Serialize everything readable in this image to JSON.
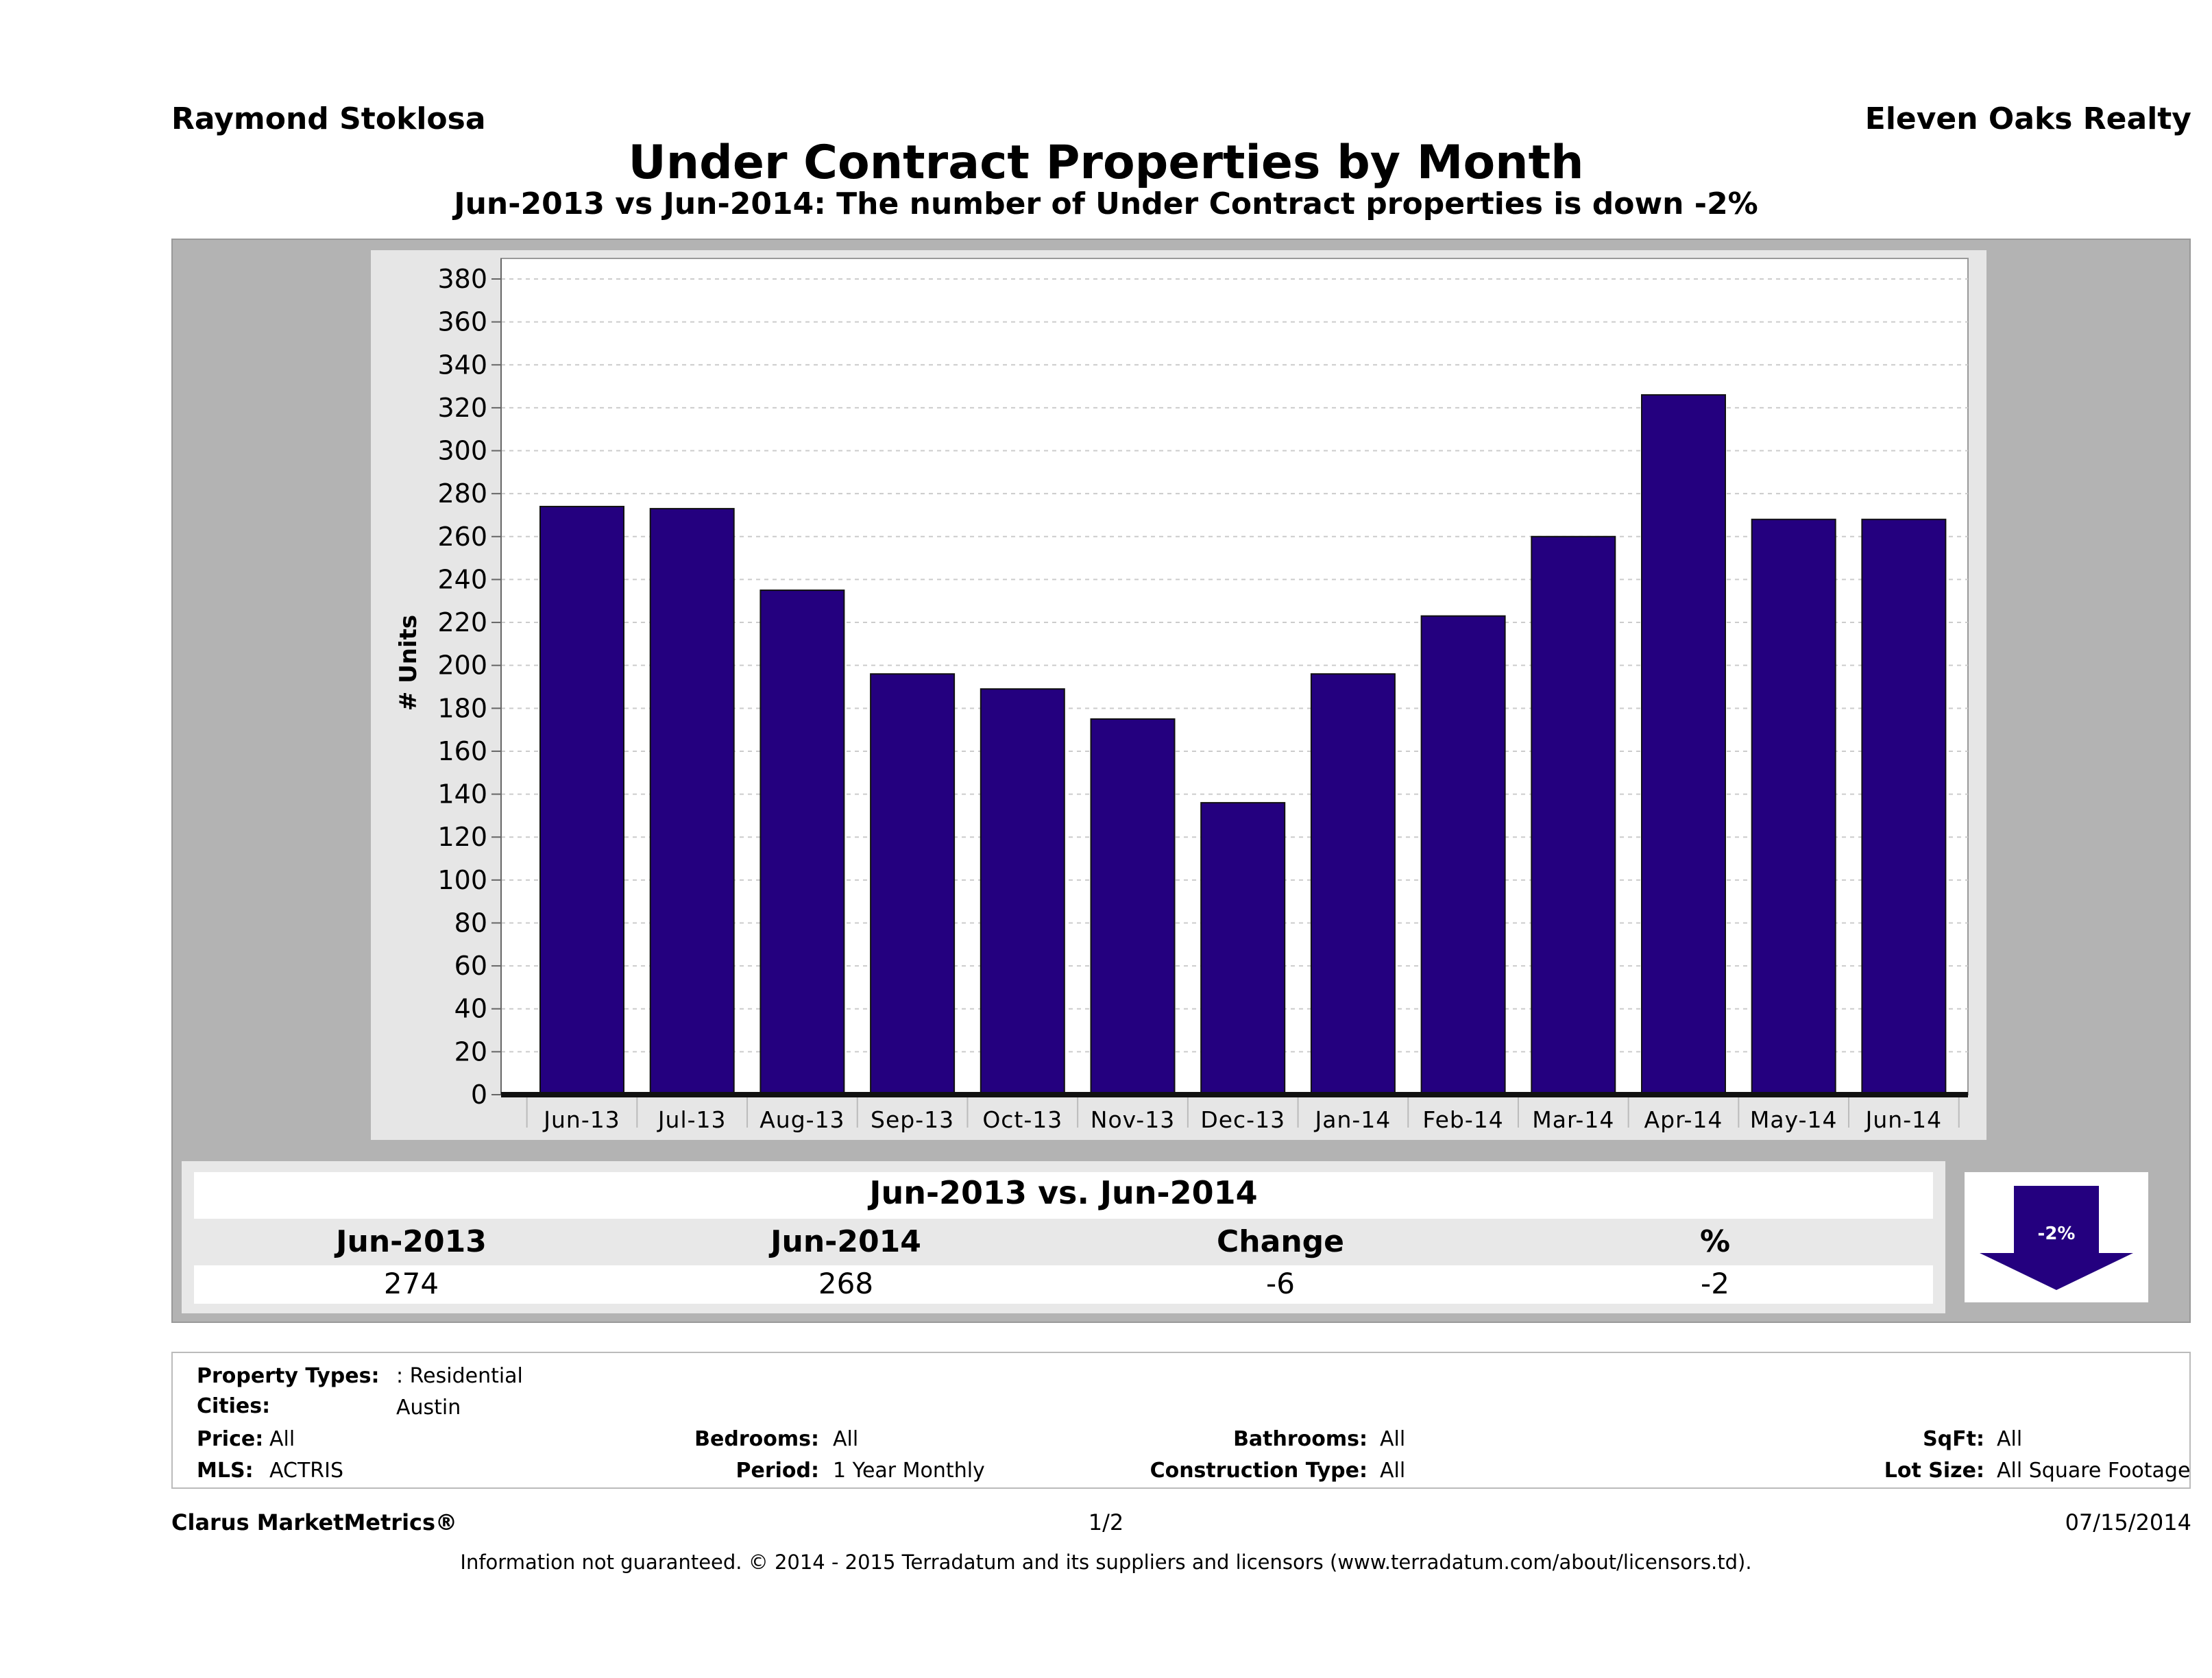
{
  "header": {
    "agent": "Raymond Stoklosa",
    "company": "Eleven Oaks Realty",
    "title": "Under Contract Properties by Month",
    "subtitle": "Jun-2013 vs Jun-2014: The number of Under Contract  properties is down -2%"
  },
  "chart_data": {
    "type": "bar",
    "title": "Under Contract Properties by Month",
    "subtitle": "Jun-2013 vs Jun-2014: The number of Under Contract  properties is down -2%",
    "xlabel": "",
    "ylabel": "# Units",
    "categories": [
      "Jun-13",
      "Jul-13",
      "Aug-13",
      "Sep-13",
      "Oct-13",
      "Nov-13",
      "Dec-13",
      "Jan-14",
      "Feb-14",
      "Mar-14",
      "Apr-14",
      "May-14",
      "Jun-14"
    ],
    "values": [
      274,
      273,
      235,
      196,
      189,
      175,
      136,
      196,
      223,
      260,
      326,
      268,
      268
    ],
    "ylim": [
      0,
      380
    ],
    "yticks": [
      0,
      20,
      40,
      60,
      80,
      100,
      120,
      140,
      160,
      180,
      200,
      220,
      240,
      260,
      280,
      300,
      320,
      340,
      360,
      380
    ],
    "grid": true,
    "bar_color": "#24007f"
  },
  "summary": {
    "title": "Jun-2013 vs. Jun-2014",
    "headers": [
      "Jun-2013",
      "Jun-2014",
      "Change",
      "%"
    ],
    "values": [
      "274",
      "268",
      "-6",
      "-2"
    ],
    "badge": "-2%",
    "badge_icon": "down-arrow-icon"
  },
  "filters": {
    "property_types_label": "Property Types:",
    "property_types_value": ": Residential",
    "cities_label": "Cities:",
    "cities_value": "Austin",
    "price_label": "Price:",
    "price_value": "All",
    "mls_label": "MLS:",
    "mls_value": "ACTRIS",
    "bedrooms_label": "Bedrooms:",
    "bedrooms_value": "All",
    "period_label": "Period:",
    "period_value": "1 Year Monthly",
    "bathrooms_label": "Bathrooms:",
    "bathrooms_value": "All",
    "construction_label": "Construction Type:",
    "construction_value": "All",
    "sqft_label": "SqFt:",
    "sqft_value": "All",
    "lot_label": "Lot Size:",
    "lot_value": "All Square Footage"
  },
  "footer": {
    "brand": "Clarus MarketMetrics®",
    "page": "1/2",
    "date": "07/15/2014",
    "disclaimer": "Information not guaranteed. © 2014 - 2015 Terradatum and its suppliers and licensors (www.terradatum.com/about/licensors.td)."
  }
}
